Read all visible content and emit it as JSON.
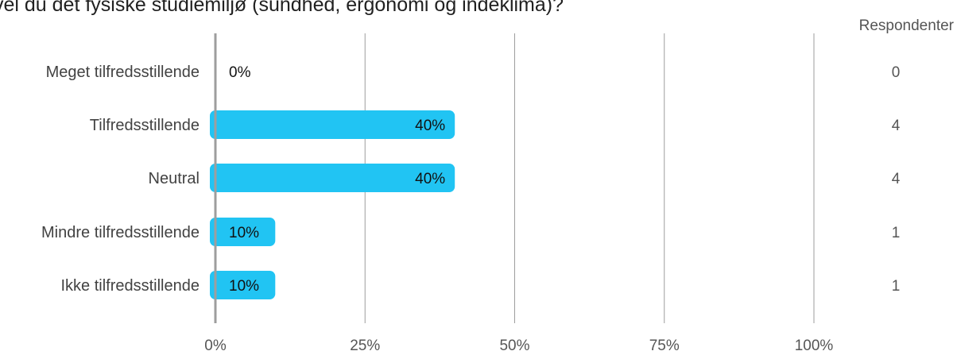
{
  "chart_data": {
    "type": "bar",
    "orientation": "horizontal",
    "title": "vel du det fysiske studiemiljø (sundhed, ergonomi og indeklima)?",
    "categories": [
      "Meget tilfredsstillende",
      "Tilfredsstillende",
      "Neutral",
      "Mindre tilfredsstillende",
      "Ikke tilfredsstillende"
    ],
    "values": [
      0,
      40,
      40,
      10,
      10
    ],
    "value_labels": [
      "0%",
      "40%",
      "40%",
      "10%",
      "10%"
    ],
    "respondents_header": "Respondenter",
    "respondents": [
      "0",
      "4",
      "4",
      "1",
      "1"
    ],
    "xlim": [
      0,
      100
    ],
    "xticks": [
      0,
      25,
      50,
      75,
      100
    ],
    "xtick_labels": [
      "0%",
      "25%",
      "50%",
      "75%",
      "100%"
    ],
    "grid": true,
    "legend": "none",
    "colors": {
      "bar": "#21c4f3",
      "grid": "#9e9e9e",
      "axis": "#9e9e9e"
    }
  }
}
